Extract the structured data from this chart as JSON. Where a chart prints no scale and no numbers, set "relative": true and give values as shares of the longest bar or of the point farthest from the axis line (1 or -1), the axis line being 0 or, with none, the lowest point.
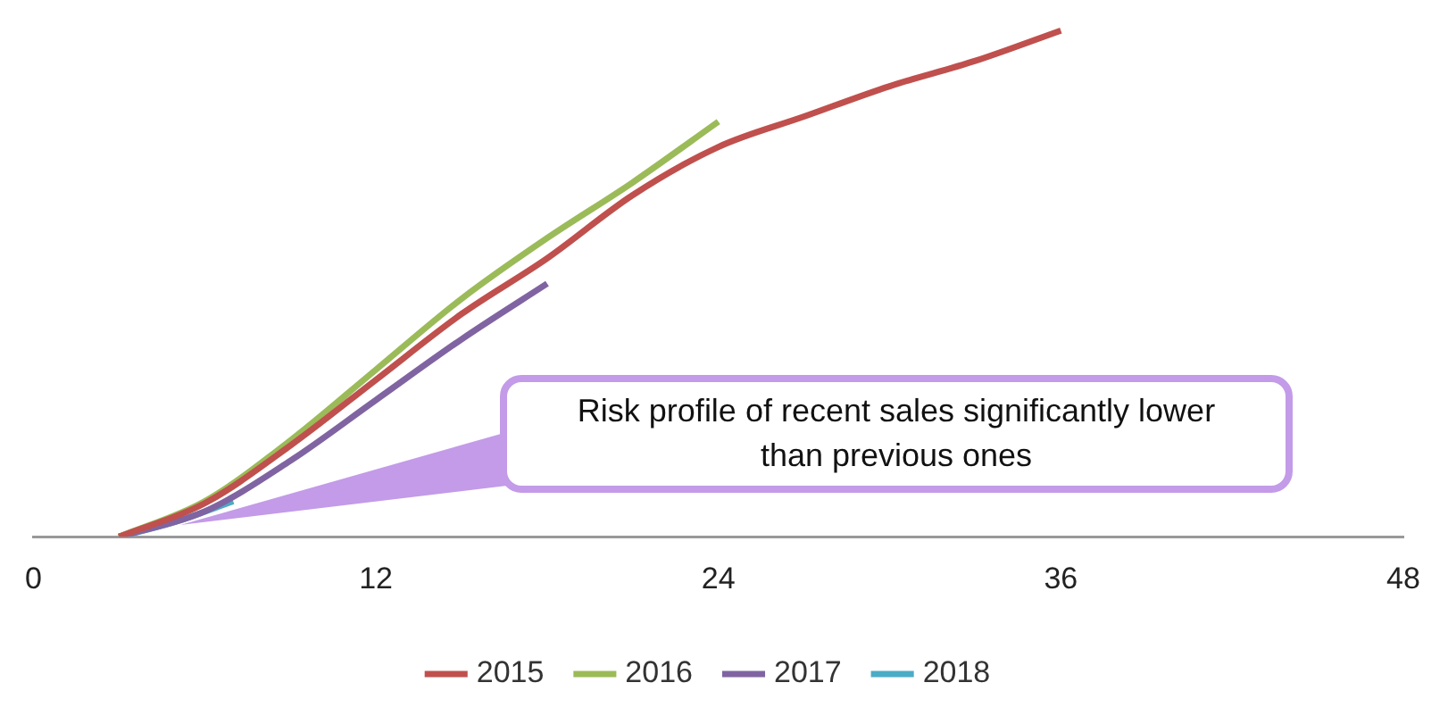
{
  "chart_data": {
    "type": "line",
    "relative": true,
    "xlim": [
      0,
      48
    ],
    "xticks": [
      0,
      12,
      24,
      36,
      48
    ],
    "legend": "bottom",
    "grid": false,
    "annotations": [
      "Risk profile of recent sales significantly lower than previous ones"
    ],
    "series": [
      {
        "name": "2015",
        "color": "#c0504d",
        "x": [
          3,
          6,
          9,
          12,
          15,
          18,
          21,
          24,
          27,
          30,
          33,
          36
        ],
        "values": [
          0,
          0.066,
          0.18,
          0.31,
          0.44,
          0.55,
          0.675,
          0.77,
          0.83,
          0.89,
          0.94,
          1
        ]
      },
      {
        "name": "2016",
        "color": "#9bbb59",
        "x": [
          3,
          6,
          9,
          12,
          15,
          18,
          21,
          24
        ],
        "values": [
          0,
          0.07,
          0.19,
          0.33,
          0.47,
          0.59,
          0.7,
          0.82
        ]
      },
      {
        "name": "2017",
        "color": "#8064a2",
        "x": [
          3,
          6,
          9,
          12,
          15,
          18
        ],
        "values": [
          0,
          0.05,
          0.15,
          0.27,
          0.39,
          0.5
        ]
      },
      {
        "name": "2018",
        "color": "#4bacc6",
        "x": [
          3,
          5,
          7
        ],
        "values": [
          0,
          0.03,
          0.07
        ]
      }
    ]
  }
}
